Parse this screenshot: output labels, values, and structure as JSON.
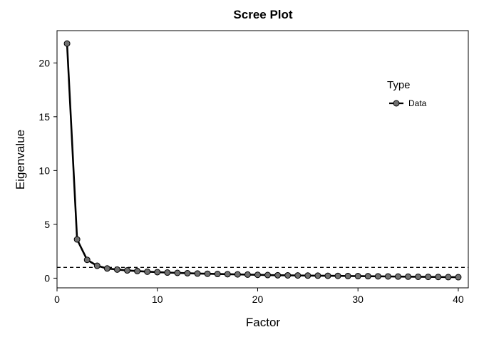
{
  "chart_data": {
    "type": "line",
    "title": "Scree Plot",
    "xlabel": "Factor",
    "ylabel": "Eigenvalue",
    "xlim": [
      0,
      41
    ],
    "ylim": [
      -0.9,
      23
    ],
    "xticks": [
      0,
      10,
      20,
      30,
      40
    ],
    "yticks": [
      0,
      5,
      10,
      15,
      20
    ],
    "grid": false,
    "reference_line": {
      "y": 1,
      "style": "dashed"
    },
    "legend": {
      "title": "Type",
      "placement": "top-right"
    },
    "series": [
      {
        "name": "Data",
        "color": "#000000",
        "marker_color": "#707070",
        "x": [
          1,
          2,
          3,
          4,
          5,
          6,
          7,
          8,
          9,
          10,
          11,
          12,
          13,
          14,
          15,
          16,
          17,
          18,
          19,
          20,
          21,
          22,
          23,
          24,
          25,
          26,
          27,
          28,
          29,
          30,
          31,
          32,
          33,
          34,
          35,
          36,
          37,
          38,
          39,
          40
        ],
        "y": [
          21.8,
          3.6,
          1.7,
          1.15,
          0.9,
          0.8,
          0.72,
          0.66,
          0.6,
          0.56,
          0.52,
          0.49,
          0.46,
          0.43,
          0.41,
          0.39,
          0.37,
          0.35,
          0.33,
          0.31,
          0.29,
          0.27,
          0.26,
          0.25,
          0.24,
          0.23,
          0.22,
          0.21,
          0.2,
          0.19,
          0.18,
          0.17,
          0.16,
          0.15,
          0.14,
          0.13,
          0.12,
          0.11,
          0.1,
          0.09
        ]
      }
    ]
  }
}
